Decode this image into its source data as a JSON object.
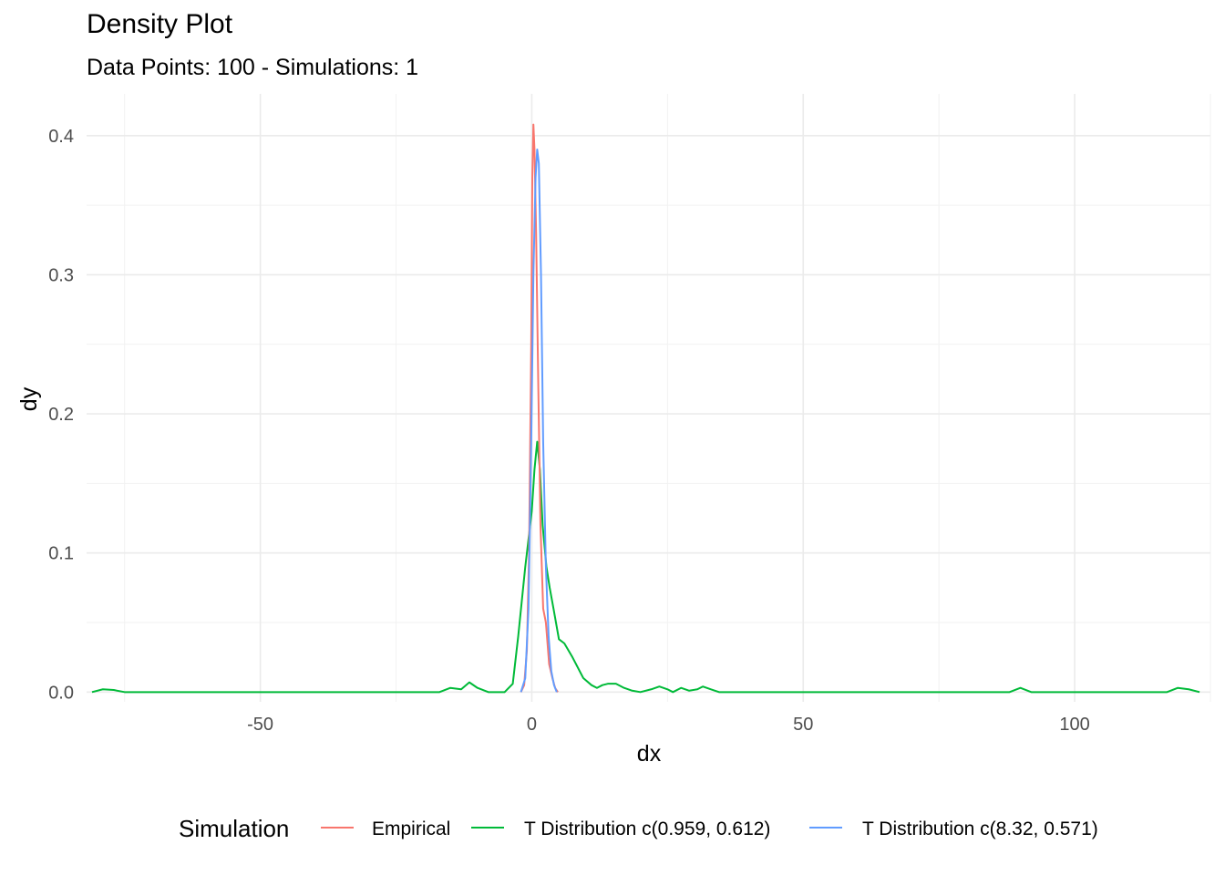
{
  "chart_data": {
    "type": "line",
    "title": "Density Plot",
    "subtitle": "Data Points: 100 - Simulations: 1",
    "xlabel": "dx",
    "ylabel": "dy",
    "xlim": [
      -82,
      125
    ],
    "ylim": [
      -0.007,
      0.43
    ],
    "x_ticks": [
      -50,
      0,
      50,
      100
    ],
    "x_tick_labels": [
      "-50",
      "0",
      "50",
      "100"
    ],
    "x_minor_ticks": [
      -75,
      -25,
      25,
      75,
      125
    ],
    "y_ticks": [
      0,
      0.1,
      0.2,
      0.3,
      0.4
    ],
    "y_tick_labels": [
      "0.0",
      "0.1",
      "0.2",
      "0.3",
      "0.4"
    ],
    "y_minor_ticks": [
      0.05,
      0.15,
      0.25,
      0.35
    ],
    "grid": true,
    "legend": {
      "title": "Simulation",
      "position": "bottom"
    },
    "series": [
      {
        "name": "Empirical",
        "color": "#F8766D",
        "points": [
          [
            -2.0,
            0
          ],
          [
            -1.4,
            0.005
          ],
          [
            -0.9,
            0.03
          ],
          [
            -0.5,
            0.1
          ],
          [
            -0.1,
            0.25
          ],
          [
            0.1,
            0.37
          ],
          [
            0.3,
            0.408
          ],
          [
            0.5,
            0.39
          ],
          [
            0.8,
            0.33
          ],
          [
            1.2,
            0.22
          ],
          [
            1.6,
            0.12
          ],
          [
            2.1,
            0.06
          ],
          [
            2.6,
            0.05
          ],
          [
            3.2,
            0.02
          ],
          [
            3.8,
            0.01
          ],
          [
            4.3,
            0.003
          ],
          [
            4.8,
            0
          ]
        ]
      },
      {
        "name": "T Distribution c(0.959, 0.612)",
        "color": "#00BA38",
        "points": [
          [
            -81,
            0
          ],
          [
            -79,
            0.002
          ],
          [
            -77,
            0.0015
          ],
          [
            -75,
            0
          ],
          [
            -17,
            0
          ],
          [
            -15,
            0.003
          ],
          [
            -13,
            0.002
          ],
          [
            -11.5,
            0.007
          ],
          [
            -10,
            0.003
          ],
          [
            -8,
            0
          ],
          [
            -5,
            0
          ],
          [
            -3.5,
            0.006
          ],
          [
            -2.5,
            0.04
          ],
          [
            -1.2,
            0.09
          ],
          [
            0,
            0.13
          ],
          [
            0.5,
            0.16
          ],
          [
            1,
            0.18
          ],
          [
            1.5,
            0.16
          ],
          [
            2,
            0.12
          ],
          [
            2.7,
            0.09
          ],
          [
            3.3,
            0.075
          ],
          [
            4,
            0.06
          ],
          [
            5,
            0.038
          ],
          [
            6,
            0.035
          ],
          [
            7.5,
            0.025
          ],
          [
            9.5,
            0.01
          ],
          [
            11,
            0.005
          ],
          [
            12,
            0.003
          ],
          [
            13,
            0.005
          ],
          [
            14,
            0.006
          ],
          [
            15.5,
            0.006
          ],
          [
            17,
            0.003
          ],
          [
            18.5,
            0.001
          ],
          [
            20,
            0
          ],
          [
            22,
            0.002
          ],
          [
            23.5,
            0.004
          ],
          [
            25,
            0.002
          ],
          [
            26,
            0
          ],
          [
            27.5,
            0.003
          ],
          [
            29,
            0.001
          ],
          [
            30.5,
            0.002
          ],
          [
            31.5,
            0.004
          ],
          [
            33,
            0.002
          ],
          [
            34.5,
            0
          ],
          [
            88,
            0
          ],
          [
            90,
            0.003
          ],
          [
            92,
            0
          ],
          [
            117,
            0
          ],
          [
            119,
            0.003
          ],
          [
            121,
            0.002
          ],
          [
            123,
            0
          ]
        ]
      },
      {
        "name": "T Distribution c(8.32, 0.571)",
        "color": "#619CFF",
        "points": [
          [
            -2,
            0
          ],
          [
            -1.2,
            0.01
          ],
          [
            -0.6,
            0.06
          ],
          [
            -0.1,
            0.18
          ],
          [
            0.3,
            0.3
          ],
          [
            0.7,
            0.37
          ],
          [
            1.0,
            0.39
          ],
          [
            1.3,
            0.38
          ],
          [
            1.7,
            0.3
          ],
          [
            2.1,
            0.18
          ],
          [
            2.6,
            0.09
          ],
          [
            3.1,
            0.04
          ],
          [
            3.6,
            0.015
          ],
          [
            4.1,
            0.005
          ],
          [
            4.6,
            0
          ]
        ]
      }
    ]
  }
}
